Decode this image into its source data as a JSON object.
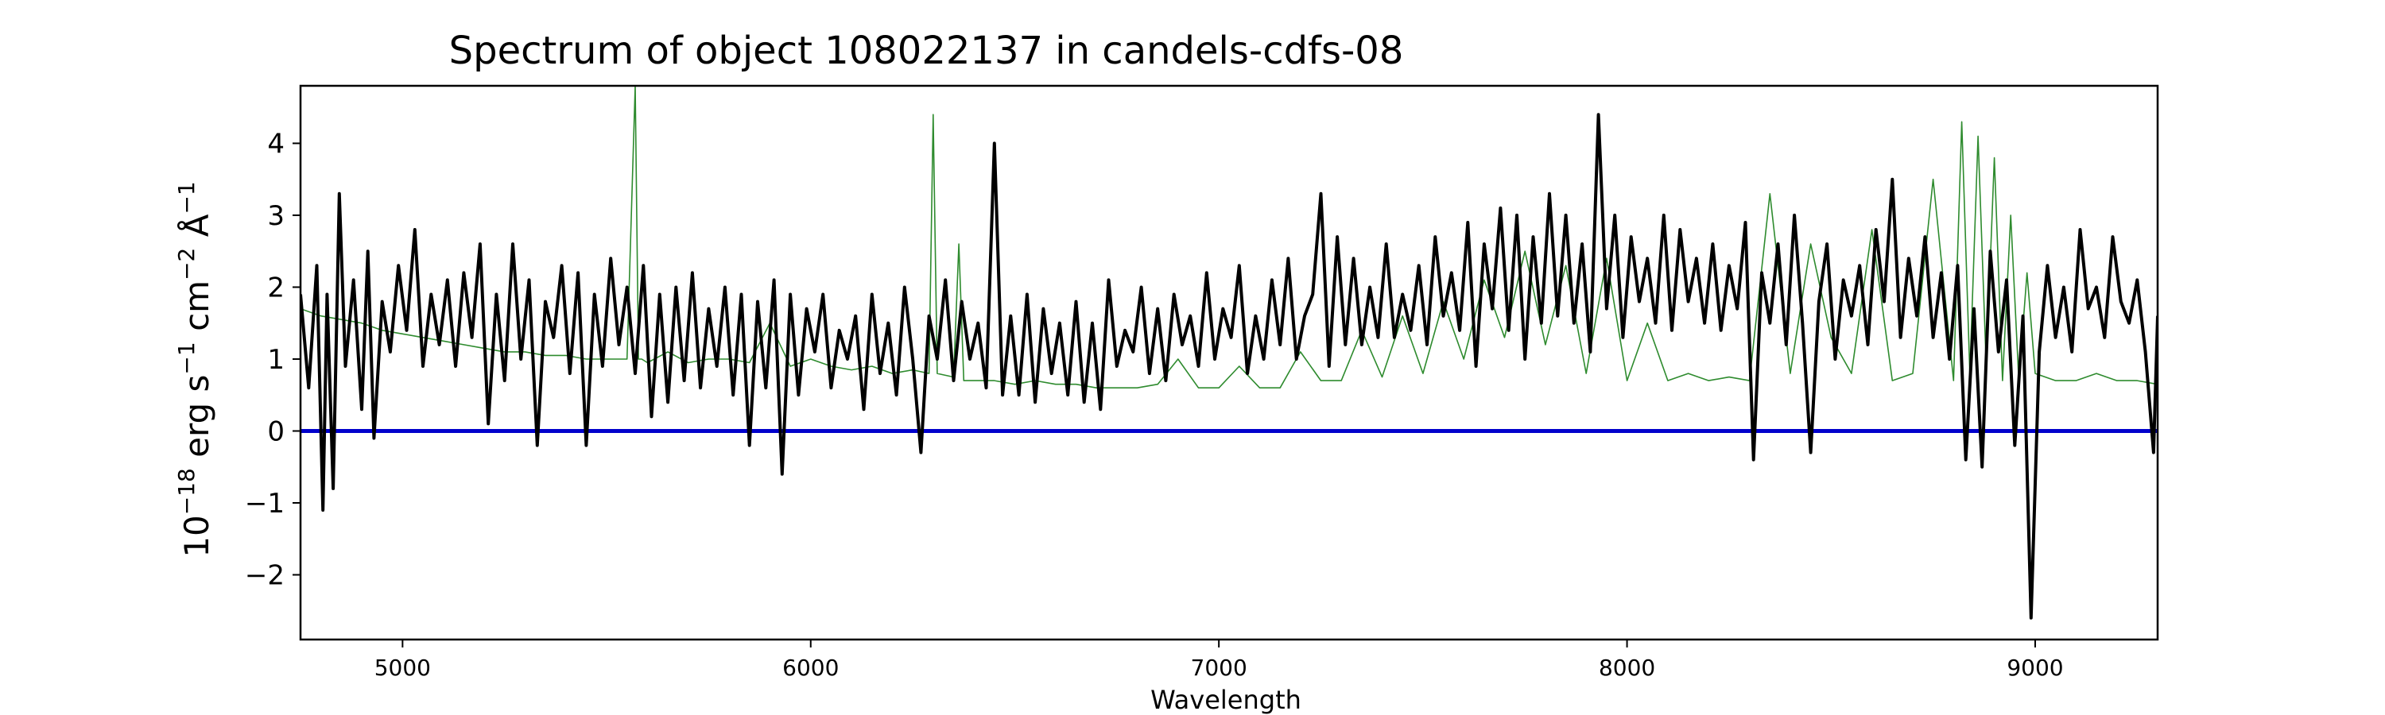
{
  "chart_data": {
    "type": "line",
    "title": "Spectrum of object 108022137 in candels-cdfs-08",
    "xlabel": "Wavelength",
    "ylabel": {
      "base": "10",
      "exp": "−18",
      "unit1": " erg s",
      "exp1": "−1",
      "unit2": " cm",
      "exp2": "−2",
      "unit3": " Å",
      "exp3": "−1"
    },
    "xlim": [
      4750,
      9300
    ],
    "ylim": [
      -2.9,
      4.8
    ],
    "xticks": [
      5000,
      6000,
      7000,
      8000,
      9000
    ],
    "yticks": [
      -2,
      -1,
      0,
      1,
      2,
      3,
      4
    ],
    "ytick_labels": [
      "−2",
      "−1",
      "0",
      "1",
      "2",
      "3",
      "4"
    ],
    "grid": false,
    "legend": "none",
    "colors": {
      "flux": "#000000",
      "noise": "#2e8b2e",
      "zero": "#0000cc"
    },
    "series": [
      {
        "role": "flux",
        "x": [
          4750,
          4770,
          4790,
          4805,
          4815,
          4830,
          4845,
          4860,
          4880,
          4900,
          4915,
          4930,
          4950,
          4970,
          4990,
          5010,
          5030,
          5050,
          5070,
          5090,
          5110,
          5130,
          5150,
          5170,
          5190,
          5210,
          5230,
          5250,
          5270,
          5290,
          5310,
          5330,
          5350,
          5370,
          5390,
          5410,
          5430,
          5450,
          5470,
          5490,
          5510,
          5530,
          5550,
          5570,
          5590,
          5610,
          5630,
          5650,
          5670,
          5690,
          5710,
          5730,
          5750,
          5770,
          5790,
          5810,
          5830,
          5850,
          5870,
          5890,
          5910,
          5930,
          5950,
          5970,
          5990,
          6010,
          6030,
          6050,
          6070,
          6090,
          6110,
          6130,
          6150,
          6170,
          6190,
          6210,
          6230,
          6250,
          6270,
          6290,
          6310,
          6330,
          6350,
          6370,
          6390,
          6410,
          6430,
          6450,
          6470,
          6490,
          6510,
          6530,
          6550,
          6570,
          6590,
          6610,
          6630,
          6650,
          6670,
          6690,
          6710,
          6730,
          6750,
          6770,
          6790,
          6810,
          6830,
          6850,
          6870,
          6890,
          6910,
          6930,
          6950,
          6970,
          6990,
          7010,
          7030,
          7050,
          7070,
          7090,
          7110,
          7130,
          7150,
          7170,
          7190,
          7210,
          7230,
          7250,
          7270,
          7290,
          7310,
          7330,
          7350,
          7370,
          7390,
          7410,
          7430,
          7450,
          7470,
          7490,
          7510,
          7530,
          7550,
          7570,
          7590,
          7610,
          7630,
          7650,
          7670,
          7690,
          7710,
          7730,
          7750,
          7770,
          7790,
          7810,
          7830,
          7850,
          7870,
          7890,
          7910,
          7930,
          7950,
          7970,
          7990,
          8010,
          8030,
          8050,
          8070,
          8090,
          8110,
          8130,
          8150,
          8170,
          8190,
          8210,
          8230,
          8250,
          8270,
          8290,
          8310,
          8330,
          8350,
          8370,
          8390,
          8410,
          8430,
          8450,
          8470,
          8490,
          8510,
          8530,
          8550,
          8570,
          8590,
          8610,
          8630,
          8650,
          8670,
          8690,
          8710,
          8730,
          8750,
          8770,
          8790,
          8810,
          8830,
          8850,
          8870,
          8890,
          8910,
          8930,
          8950,
          8970,
          8990,
          9010,
          9030,
          9050,
          9070,
          9090,
          9110,
          9130,
          9150,
          9170,
          9190,
          9210,
          9230,
          9250,
          9270,
          9290,
          9300
        ],
        "y": [
          1.9,
          0.6,
          2.3,
          -1.1,
          1.9,
          -0.8,
          3.3,
          0.9,
          2.1,
          0.3,
          2.5,
          -0.1,
          1.8,
          1.1,
          2.3,
          1.4,
          2.8,
          0.9,
          1.9,
          1.2,
          2.1,
          0.9,
          2.2,
          1.3,
          2.6,
          0.1,
          1.9,
          0.7,
          2.6,
          1.0,
          2.1,
          -0.2,
          1.8,
          1.3,
          2.3,
          0.8,
          2.2,
          -0.2,
          1.9,
          0.9,
          2.4,
          1.2,
          2.0,
          0.8,
          2.3,
          0.2,
          1.9,
          0.4,
          2.0,
          0.7,
          2.2,
          0.6,
          1.7,
          0.9,
          2.0,
          0.5,
          1.9,
          -0.2,
          1.8,
          0.6,
          2.1,
          -0.6,
          1.9,
          0.5,
          1.7,
          1.1,
          1.9,
          0.6,
          1.4,
          1.0,
          1.6,
          0.3,
          1.9,
          0.8,
          1.5,
          0.5,
          2.0,
          1.0,
          -0.3,
          1.6,
          1.0,
          2.1,
          0.7,
          1.8,
          1.0,
          1.5,
          0.6,
          4.0,
          0.5,
          1.6,
          0.5,
          1.9,
          0.4,
          1.7,
          0.8,
          1.5,
          0.5,
          1.8,
          0.4,
          1.5,
          0.3,
          2.1,
          0.9,
          1.4,
          1.1,
          2.0,
          0.8,
          1.7,
          0.7,
          1.9,
          1.2,
          1.6,
          0.9,
          2.2,
          1.0,
          1.7,
          1.3,
          2.3,
          0.8,
          1.6,
          1.0,
          2.1,
          1.2,
          2.4,
          1.0,
          1.6,
          1.9,
          3.3,
          0.9,
          2.7,
          1.2,
          2.4,
          1.2,
          2.0,
          1.3,
          2.6,
          1.3,
          1.9,
          1.4,
          2.3,
          1.2,
          2.7,
          1.6,
          2.2,
          1.4,
          2.9,
          0.9,
          2.6,
          1.7,
          3.1,
          1.4,
          3.0,
          1.0,
          2.7,
          1.5,
          3.3,
          1.6,
          3.0,
          1.5,
          2.6,
          1.1,
          4.4,
          1.7,
          3.0,
          1.3,
          2.7,
          1.8,
          2.4,
          1.5,
          3.0,
          1.4,
          2.8,
          1.8,
          2.4,
          1.5,
          2.6,
          1.4,
          2.3,
          1.7,
          2.9,
          -0.4,
          2.2,
          1.5,
          2.6,
          1.2,
          3.0,
          1.5,
          -0.3,
          1.8,
          2.6,
          1.0,
          2.1,
          1.6,
          2.3,
          1.2,
          2.8,
          1.8,
          3.5,
          1.3,
          2.4,
          1.6,
          2.7,
          1.3,
          2.2,
          1.0,
          2.3,
          -0.4,
          1.7,
          -0.5,
          2.5,
          1.1,
          2.1,
          -0.2,
          1.6,
          -2.6,
          1.1,
          2.3,
          1.3,
          2.0,
          1.1,
          2.8,
          1.7,
          2.0,
          1.3,
          2.7,
          1.8,
          1.5,
          2.1,
          1.1,
          -0.3,
          1.6
        ]
      },
      {
        "role": "noise",
        "x": [
          4750,
          4800,
          4850,
          4900,
          4950,
          5000,
          5050,
          5100,
          5150,
          5200,
          5250,
          5300,
          5350,
          5400,
          5450,
          5500,
          5550,
          5570,
          5578,
          5586,
          5600,
          5650,
          5700,
          5750,
          5800,
          5850,
          5900,
          5950,
          6000,
          6050,
          6100,
          6150,
          6200,
          6250,
          6290,
          6300,
          6310,
          6350,
          6363,
          6375,
          6400,
          6450,
          6500,
          6550,
          6600,
          6650,
          6700,
          6750,
          6800,
          6850,
          6900,
          6950,
          7000,
          7050,
          7100,
          7150,
          7200,
          7250,
          7300,
          7350,
          7400,
          7450,
          7500,
          7550,
          7600,
          7650,
          7700,
          7750,
          7800,
          7850,
          7900,
          7950,
          8000,
          8050,
          8100,
          8150,
          8200,
          8250,
          8300,
          8350,
          8400,
          8450,
          8500,
          8550,
          8600,
          8650,
          8700,
          8750,
          8800,
          8820,
          8840,
          8860,
          8880,
          8900,
          8920,
          8940,
          8960,
          8980,
          9000,
          9050,
          9100,
          9150,
          9200,
          9250,
          9300
        ],
        "y": [
          1.7,
          1.6,
          1.55,
          1.5,
          1.4,
          1.35,
          1.3,
          1.25,
          1.2,
          1.15,
          1.1,
          1.1,
          1.05,
          1.05,
          1.0,
          1.0,
          1.0,
          4.8,
          1.0,
          1.0,
          0.95,
          1.1,
          0.95,
          1.0,
          1.0,
          0.95,
          1.5,
          0.9,
          1.0,
          0.9,
          0.85,
          0.9,
          0.8,
          0.85,
          0.8,
          4.4,
          0.8,
          0.75,
          2.6,
          0.7,
          0.7,
          0.7,
          0.65,
          0.7,
          0.65,
          0.65,
          0.6,
          0.6,
          0.6,
          0.65,
          1.0,
          0.6,
          0.6,
          0.9,
          0.6,
          0.6,
          1.1,
          0.7,
          0.7,
          1.4,
          0.75,
          1.6,
          0.8,
          1.8,
          1.0,
          2.1,
          1.3,
          2.5,
          1.2,
          2.3,
          0.8,
          2.4,
          0.7,
          1.5,
          0.7,
          0.8,
          0.7,
          0.75,
          0.7,
          3.3,
          0.8,
          2.6,
          1.3,
          0.8,
          2.8,
          0.7,
          0.8,
          3.5,
          0.7,
          4.3,
          0.8,
          4.1,
          0.9,
          3.8,
          0.7,
          3.0,
          0.7,
          2.2,
          0.8,
          0.7,
          0.7,
          0.8,
          0.7,
          0.7,
          0.65
        ]
      }
    ]
  }
}
